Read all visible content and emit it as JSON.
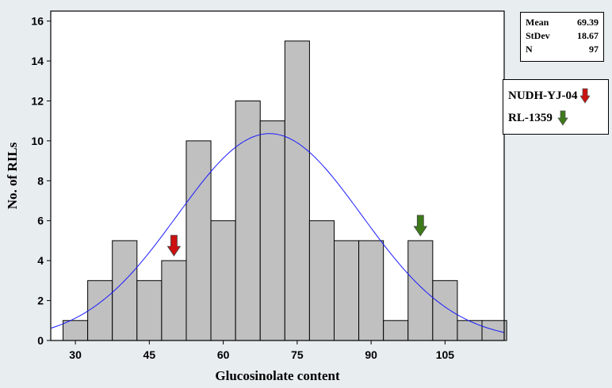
{
  "chart_data": {
    "type": "bar",
    "title": "",
    "xlabel": "Glucosinolate content",
    "ylabel": "No. of RILs",
    "xlim": [
      25,
      117
    ],
    "ylim": [
      0,
      16.5
    ],
    "bin_width": 5,
    "bins": [
      {
        "start": 27.5,
        "value": 1
      },
      {
        "start": 32.5,
        "value": 3
      },
      {
        "start": 37.5,
        "value": 5
      },
      {
        "start": 42.5,
        "value": 3
      },
      {
        "start": 47.5,
        "value": 4
      },
      {
        "start": 52.5,
        "value": 10
      },
      {
        "start": 57.5,
        "value": 6
      },
      {
        "start": 62.5,
        "value": 12
      },
      {
        "start": 67.5,
        "value": 11
      },
      {
        "start": 72.5,
        "value": 15
      },
      {
        "start": 77.5,
        "value": 6
      },
      {
        "start": 82.5,
        "value": 5
      },
      {
        "start": 87.5,
        "value": 5
      },
      {
        "start": 92.5,
        "value": 1
      },
      {
        "start": 97.5,
        "value": 5
      },
      {
        "start": 102.5,
        "value": 3
      },
      {
        "start": 107.5,
        "value": 1
      },
      {
        "start": 112.5,
        "value": 1
      }
    ],
    "x_ticks": [
      30,
      45,
      60,
      75,
      90,
      105
    ],
    "x_tick_labels": [
      "30",
      "45",
      "60",
      "75",
      "90",
      "105"
    ],
    "y_ticks": [
      0,
      2,
      4,
      6,
      8,
      10,
      12,
      14,
      16
    ],
    "y_tick_labels": [
      "0",
      "2",
      "4",
      "6",
      "8",
      "10",
      "12",
      "14",
      "16"
    ],
    "normal_fit": {
      "mean": 69.39,
      "stdev": 18.67,
      "n": 97,
      "bin_width": 5
    },
    "markers": [
      {
        "name": "NUDH-YJ-04",
        "x": 50,
        "color": "#cc1111"
      },
      {
        "name": "RL-1359",
        "x": 100,
        "color": "#3d7a1a"
      }
    ],
    "bar_color": "#c0c0c0",
    "curve_color": "#1a1aff",
    "grid": false
  },
  "stats": {
    "mean_label": "Mean",
    "mean_value": "69.39",
    "stdev_label": "StDev",
    "stdev_value": "18.67",
    "n_label": "N",
    "n_value": "97"
  },
  "legend": {
    "items": [
      {
        "label": "NUDH-YJ-04",
        "color": "#cc1111"
      },
      {
        "label": "RL-1359",
        "color": "#3d7a1a"
      }
    ]
  }
}
